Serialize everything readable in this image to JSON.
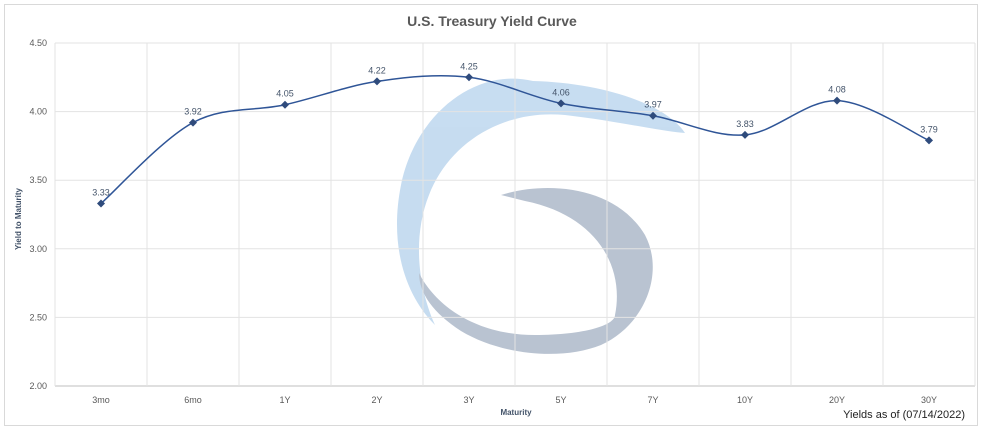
{
  "chart_data": {
    "type": "line",
    "title": "U.S. Treasury Yield Curve",
    "xlabel": "Maturity",
    "ylabel": "Yield to Maturity",
    "categories": [
      "3mo",
      "6mo",
      "1Y",
      "2Y",
      "3Y",
      "5Y",
      "7Y",
      "10Y",
      "20Y",
      "30Y"
    ],
    "series": [
      {
        "values": [
          3.33,
          3.92,
          4.05,
          4.22,
          4.25,
          4.06,
          3.97,
          3.83,
          4.08,
          3.79
        ],
        "color": "#2f5597",
        "smooth": true,
        "marker": "diamond"
      }
    ],
    "data_labels": [
      "3.33",
      "3.92",
      "4.05",
      "4.22",
      "4.25",
      "4.06",
      "3.97",
      "3.83",
      "4.08",
      "3.79"
    ],
    "y_ticks": [
      "2.00",
      "2.50",
      "3.00",
      "3.50",
      "4.00",
      "4.50"
    ],
    "ylim": [
      2.0,
      4.5
    ],
    "grid": true,
    "legend": "none",
    "footnote": "Yields as of (07/14/2022)",
    "watermark_colors": [
      "#bdd7ee",
      "#adb9ca"
    ]
  }
}
